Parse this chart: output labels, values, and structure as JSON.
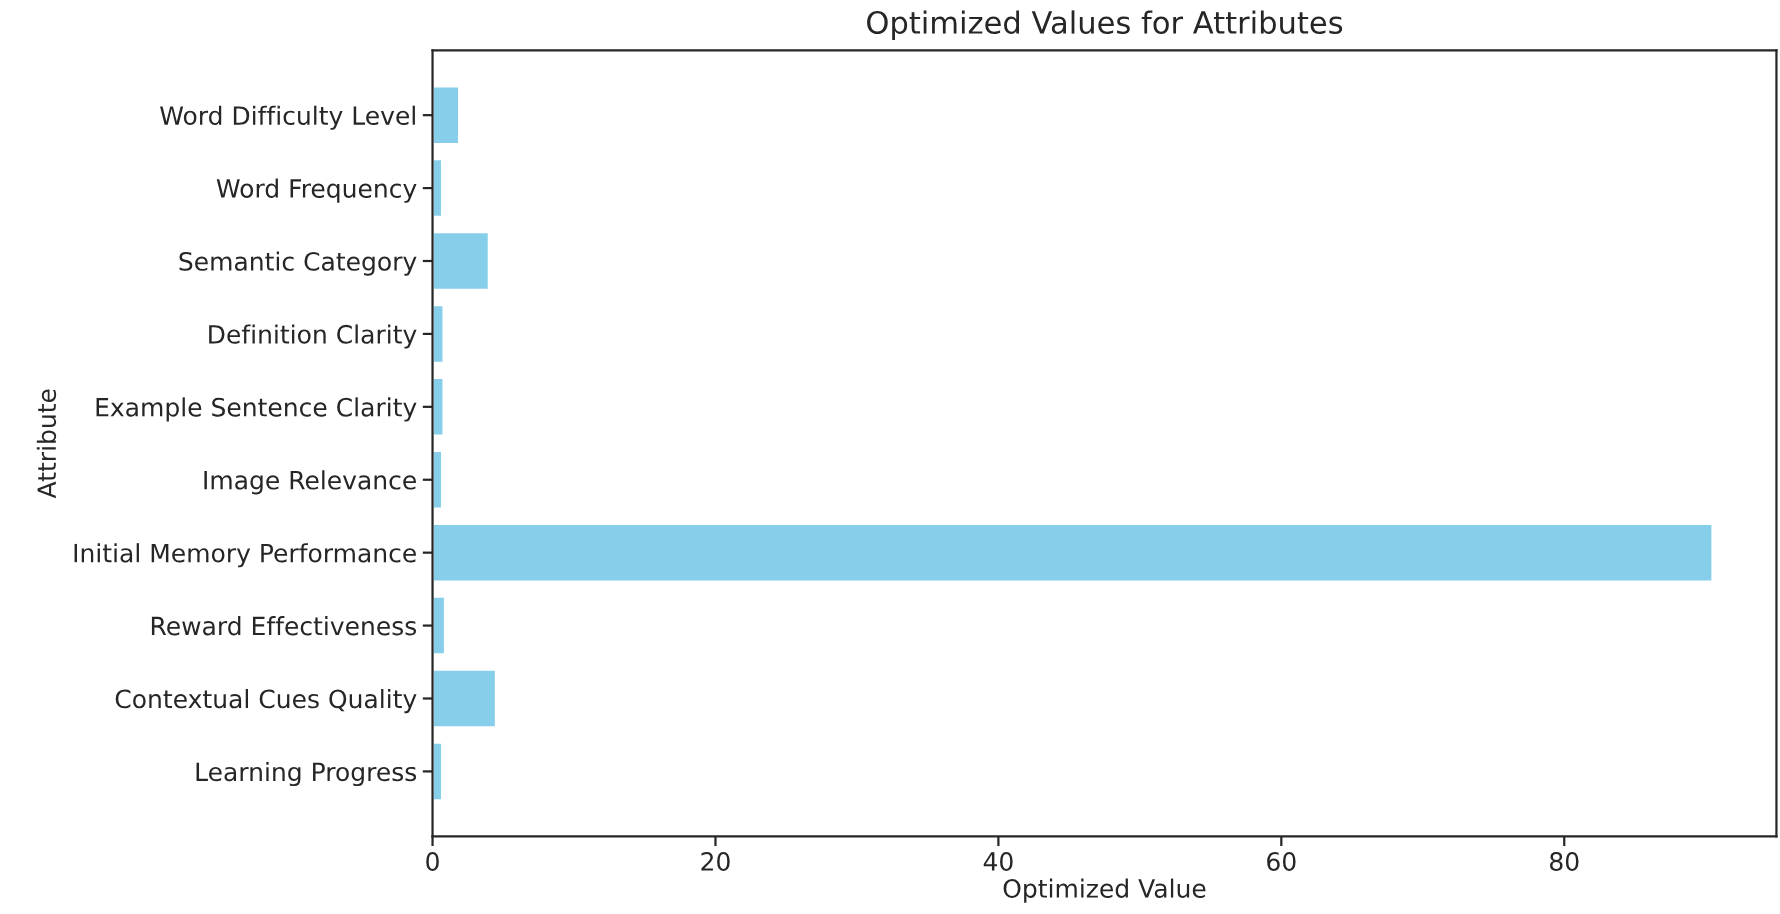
{
  "chart_data": {
    "type": "bar",
    "orientation": "horizontal",
    "title": "Optimized Values for Attributes",
    "xlabel": "Optimized Value",
    "ylabel": "Attribute",
    "categories": [
      "Word Difficulty Level",
      "Word Frequency",
      "Semantic Category",
      "Definition Clarity",
      "Example Sentence Clarity",
      "Image Relevance",
      "Initial Memory Performance",
      "Reward Effectiveness",
      "Contextual Cues Quality",
      "Learning Progress"
    ],
    "values": [
      1.9,
      0.7,
      4.0,
      0.8,
      0.8,
      0.7,
      90.5,
      0.9,
      4.5,
      0.7
    ],
    "color": "#87ceeb",
    "xlim": [
      0,
      95
    ],
    "xticks": [
      0,
      20,
      40,
      60,
      80
    ],
    "grid": false
  }
}
